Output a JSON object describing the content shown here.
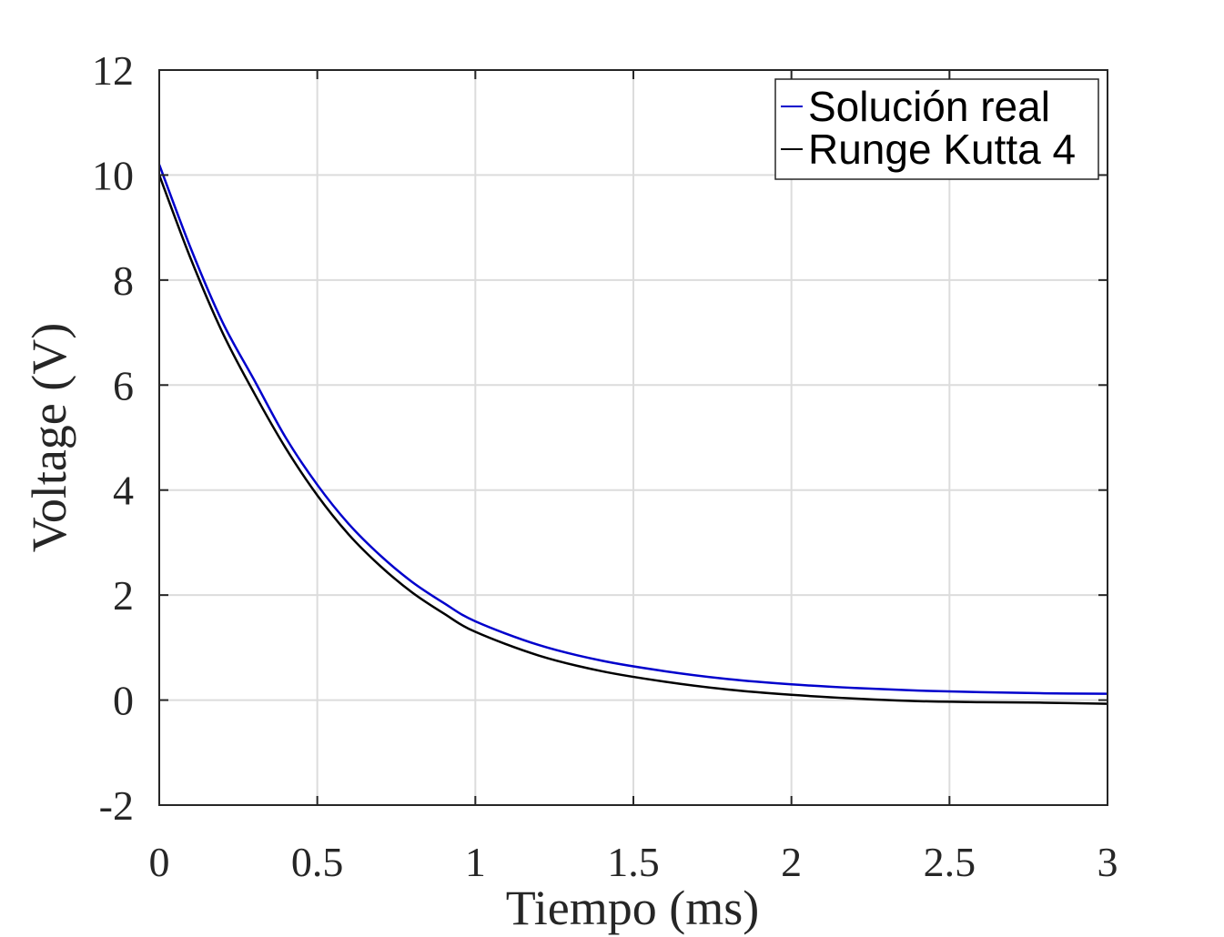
{
  "chart_data": {
    "type": "line",
    "title": "",
    "xlabel": "Tiempo (ms)",
    "ylabel": "Voltage (V)",
    "xlim": [
      0,
      3
    ],
    "ylim": [
      -2,
      12
    ],
    "xticks": [
      0,
      0.5,
      1,
      1.5,
      2,
      2.5,
      3
    ],
    "xtick_labels": [
      "0",
      "0.5",
      "1",
      "1.5",
      "2",
      "2.5",
      "3"
    ],
    "yticks": [
      -2,
      0,
      2,
      4,
      6,
      8,
      10,
      12
    ],
    "ytick_labels": [
      "-2",
      "0",
      "2",
      "4",
      "6",
      "8",
      "10",
      "12"
    ],
    "grid": true,
    "legend_position": "top-right",
    "series": [
      {
        "name": "Solución real",
        "color": "#0000cc",
        "x": [
          0,
          0.1,
          0.2,
          0.3,
          0.4,
          0.5,
          0.6,
          0.7,
          0.8,
          0.9,
          1.0,
          1.2,
          1.4,
          1.6,
          1.8,
          2.0,
          2.2,
          2.4,
          2.6,
          2.8,
          3.0
        ],
        "y": [
          10.2,
          8.6,
          7.2,
          6.1,
          5.0,
          4.1,
          3.35,
          2.75,
          2.25,
          1.85,
          1.5,
          1.05,
          0.75,
          0.55,
          0.4,
          0.3,
          0.23,
          0.18,
          0.15,
          0.13,
          0.12
        ]
      },
      {
        "name": "Runge Kutta 4",
        "color": "#000000",
        "x": [
          0,
          0.1,
          0.2,
          0.3,
          0.4,
          0.5,
          0.6,
          0.7,
          0.8,
          0.9,
          1.0,
          1.2,
          1.4,
          1.6,
          1.8,
          2.0,
          2.2,
          2.4,
          2.6,
          2.8,
          3.0
        ],
        "y": [
          10.0,
          8.4,
          7.0,
          5.85,
          4.8,
          3.9,
          3.15,
          2.55,
          2.05,
          1.65,
          1.3,
          0.85,
          0.55,
          0.35,
          0.2,
          0.1,
          0.03,
          -0.02,
          -0.04,
          -0.05,
          -0.07
        ]
      }
    ]
  }
}
